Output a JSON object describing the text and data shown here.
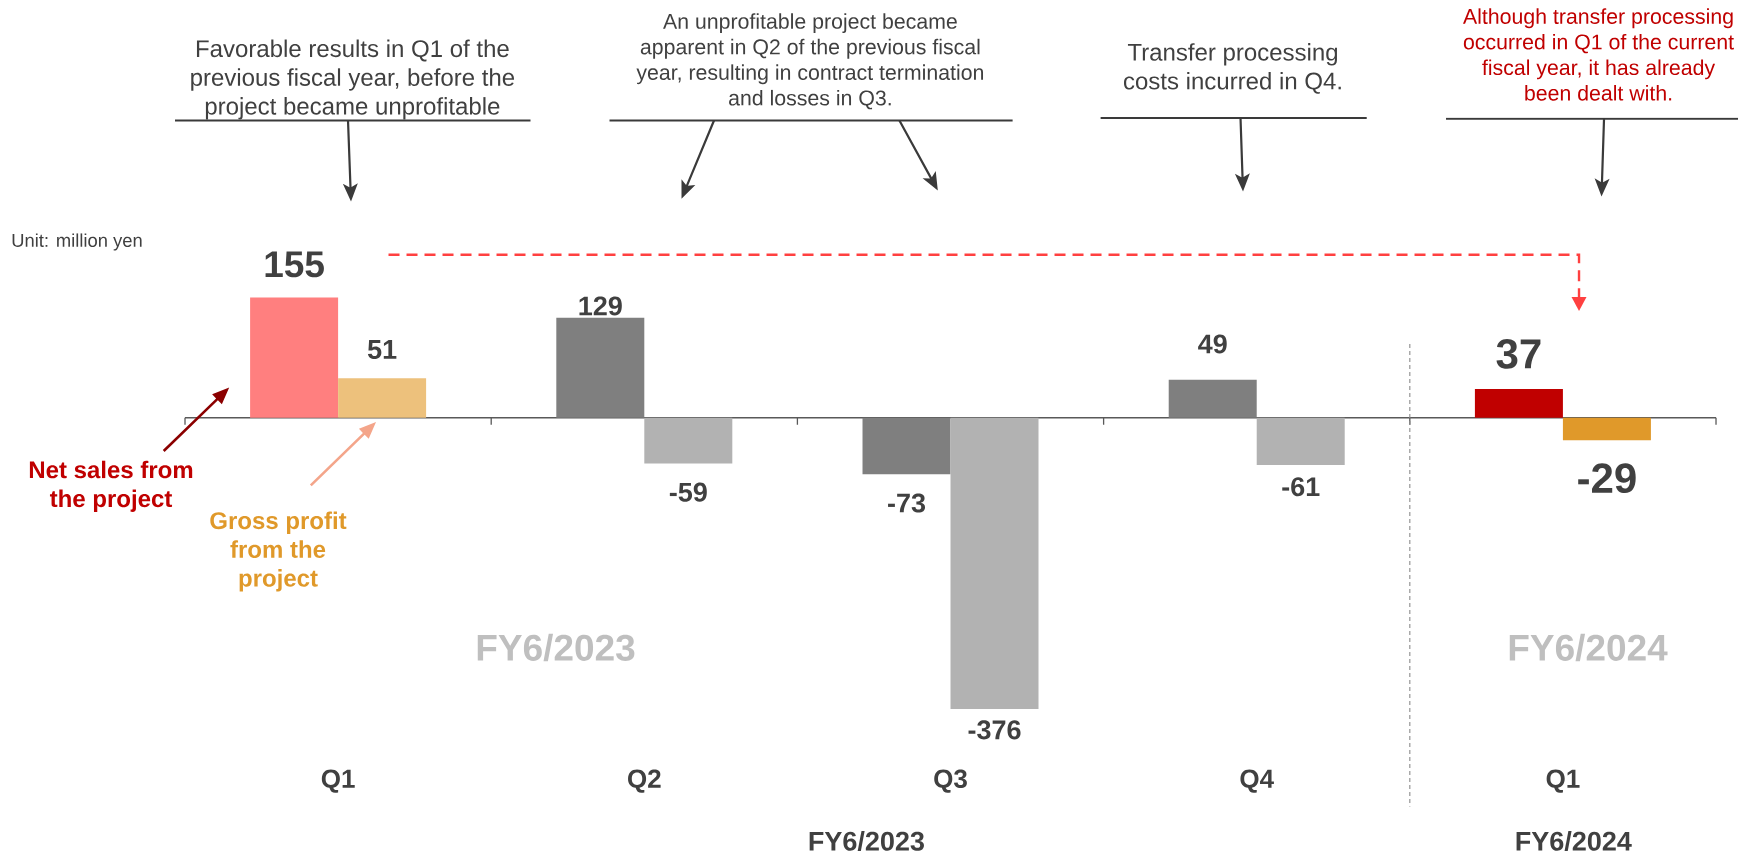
{
  "chart_data": {
    "type": "bar",
    "categories": [
      "Q1",
      "Q2",
      "Q3",
      "Q4",
      "Q1"
    ],
    "series": [
      {
        "name": "Net sales from the project",
        "colors": [
          "#ff7f7f",
          "#7f7f7f",
          "#7f7f7f",
          "#7f7f7f",
          "#c00000"
        ],
        "values": [
          155,
          129,
          -73,
          49,
          37
        ]
      },
      {
        "name": "Gross profit from the project",
        "colors": [
          "#edc17c",
          "#b2b2b2",
          "#b2b2b2",
          "#b2b2b2",
          "#e0992a"
        ],
        "values": [
          51,
          -59,
          -376,
          -61,
          -29
        ]
      }
    ],
    "data_labels": true,
    "tick_labels": "x",
    "annotations": [
      "Favorable results in Q1 of the previous fiscal year, before the project became unprofitable",
      "An unprofitable project became apparent in Q2 of the previous fiscal year, resulting in contract termination and losses in Q3.",
      "Transfer processing costs incurred in Q4.",
      "Although transfer processing occurred in Q1 of the current fiscal year, it has already been dealt with.",
      "Unit: million yen",
      "FY6/2023",
      "FY6/2024",
      "FY6/2023",
      "FY6/2024"
    ]
  }
}
